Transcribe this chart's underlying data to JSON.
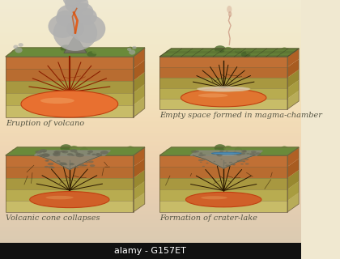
{
  "bg_top_color": "#f0e8d0",
  "bg_bottom_color": "#e0d0b0",
  "black_bar_color": "#111111",
  "black_bar_text": "alamy - G157ET",
  "black_bar_text_color": "#ffffff",
  "black_bar_fontsize": 8,
  "labels": [
    "Eruption of volcano",
    "Empty space formed in magma-chamber",
    "Volcanic cone collapses",
    "Formation of crater-lake"
  ],
  "label_fontsize": 7,
  "label_color": "#555544",
  "watermark_color": "#cfc0a0",
  "watermark_fontsize": 36,
  "layer_colors": [
    "#d4c870",
    "#c4b858",
    "#b8a848",
    "#c87838",
    "#d08040"
  ],
  "layer_front_colors": [
    "#c8bc68",
    "#b8ac50",
    "#a89840",
    "#b86c30",
    "#c07035"
  ],
  "layer_side_colors": [
    "#b8ac58",
    "#a89c40",
    "#988830",
    "#a85c20",
    "#b06025"
  ],
  "magma_color": "#e87030",
  "magma_light": "#f0a060",
  "dike_red": "#8b2000",
  "dike_dark": "#2a1800",
  "surface_green": "#6a8a3a",
  "surface_green_dark": "#4a6a2a",
  "cone_color": "#707060",
  "ash_dark": "#666660",
  "ash_light": "#aaaaaa",
  "smoke_color": "#cccccc",
  "smoke_pink": "#c8907a",
  "rubble_color": "#888878",
  "rubble_dark": "#666656",
  "lake_color": "#4a90c0",
  "lake_light": "#80b8e0",
  "void_color": "#e0d0b8"
}
